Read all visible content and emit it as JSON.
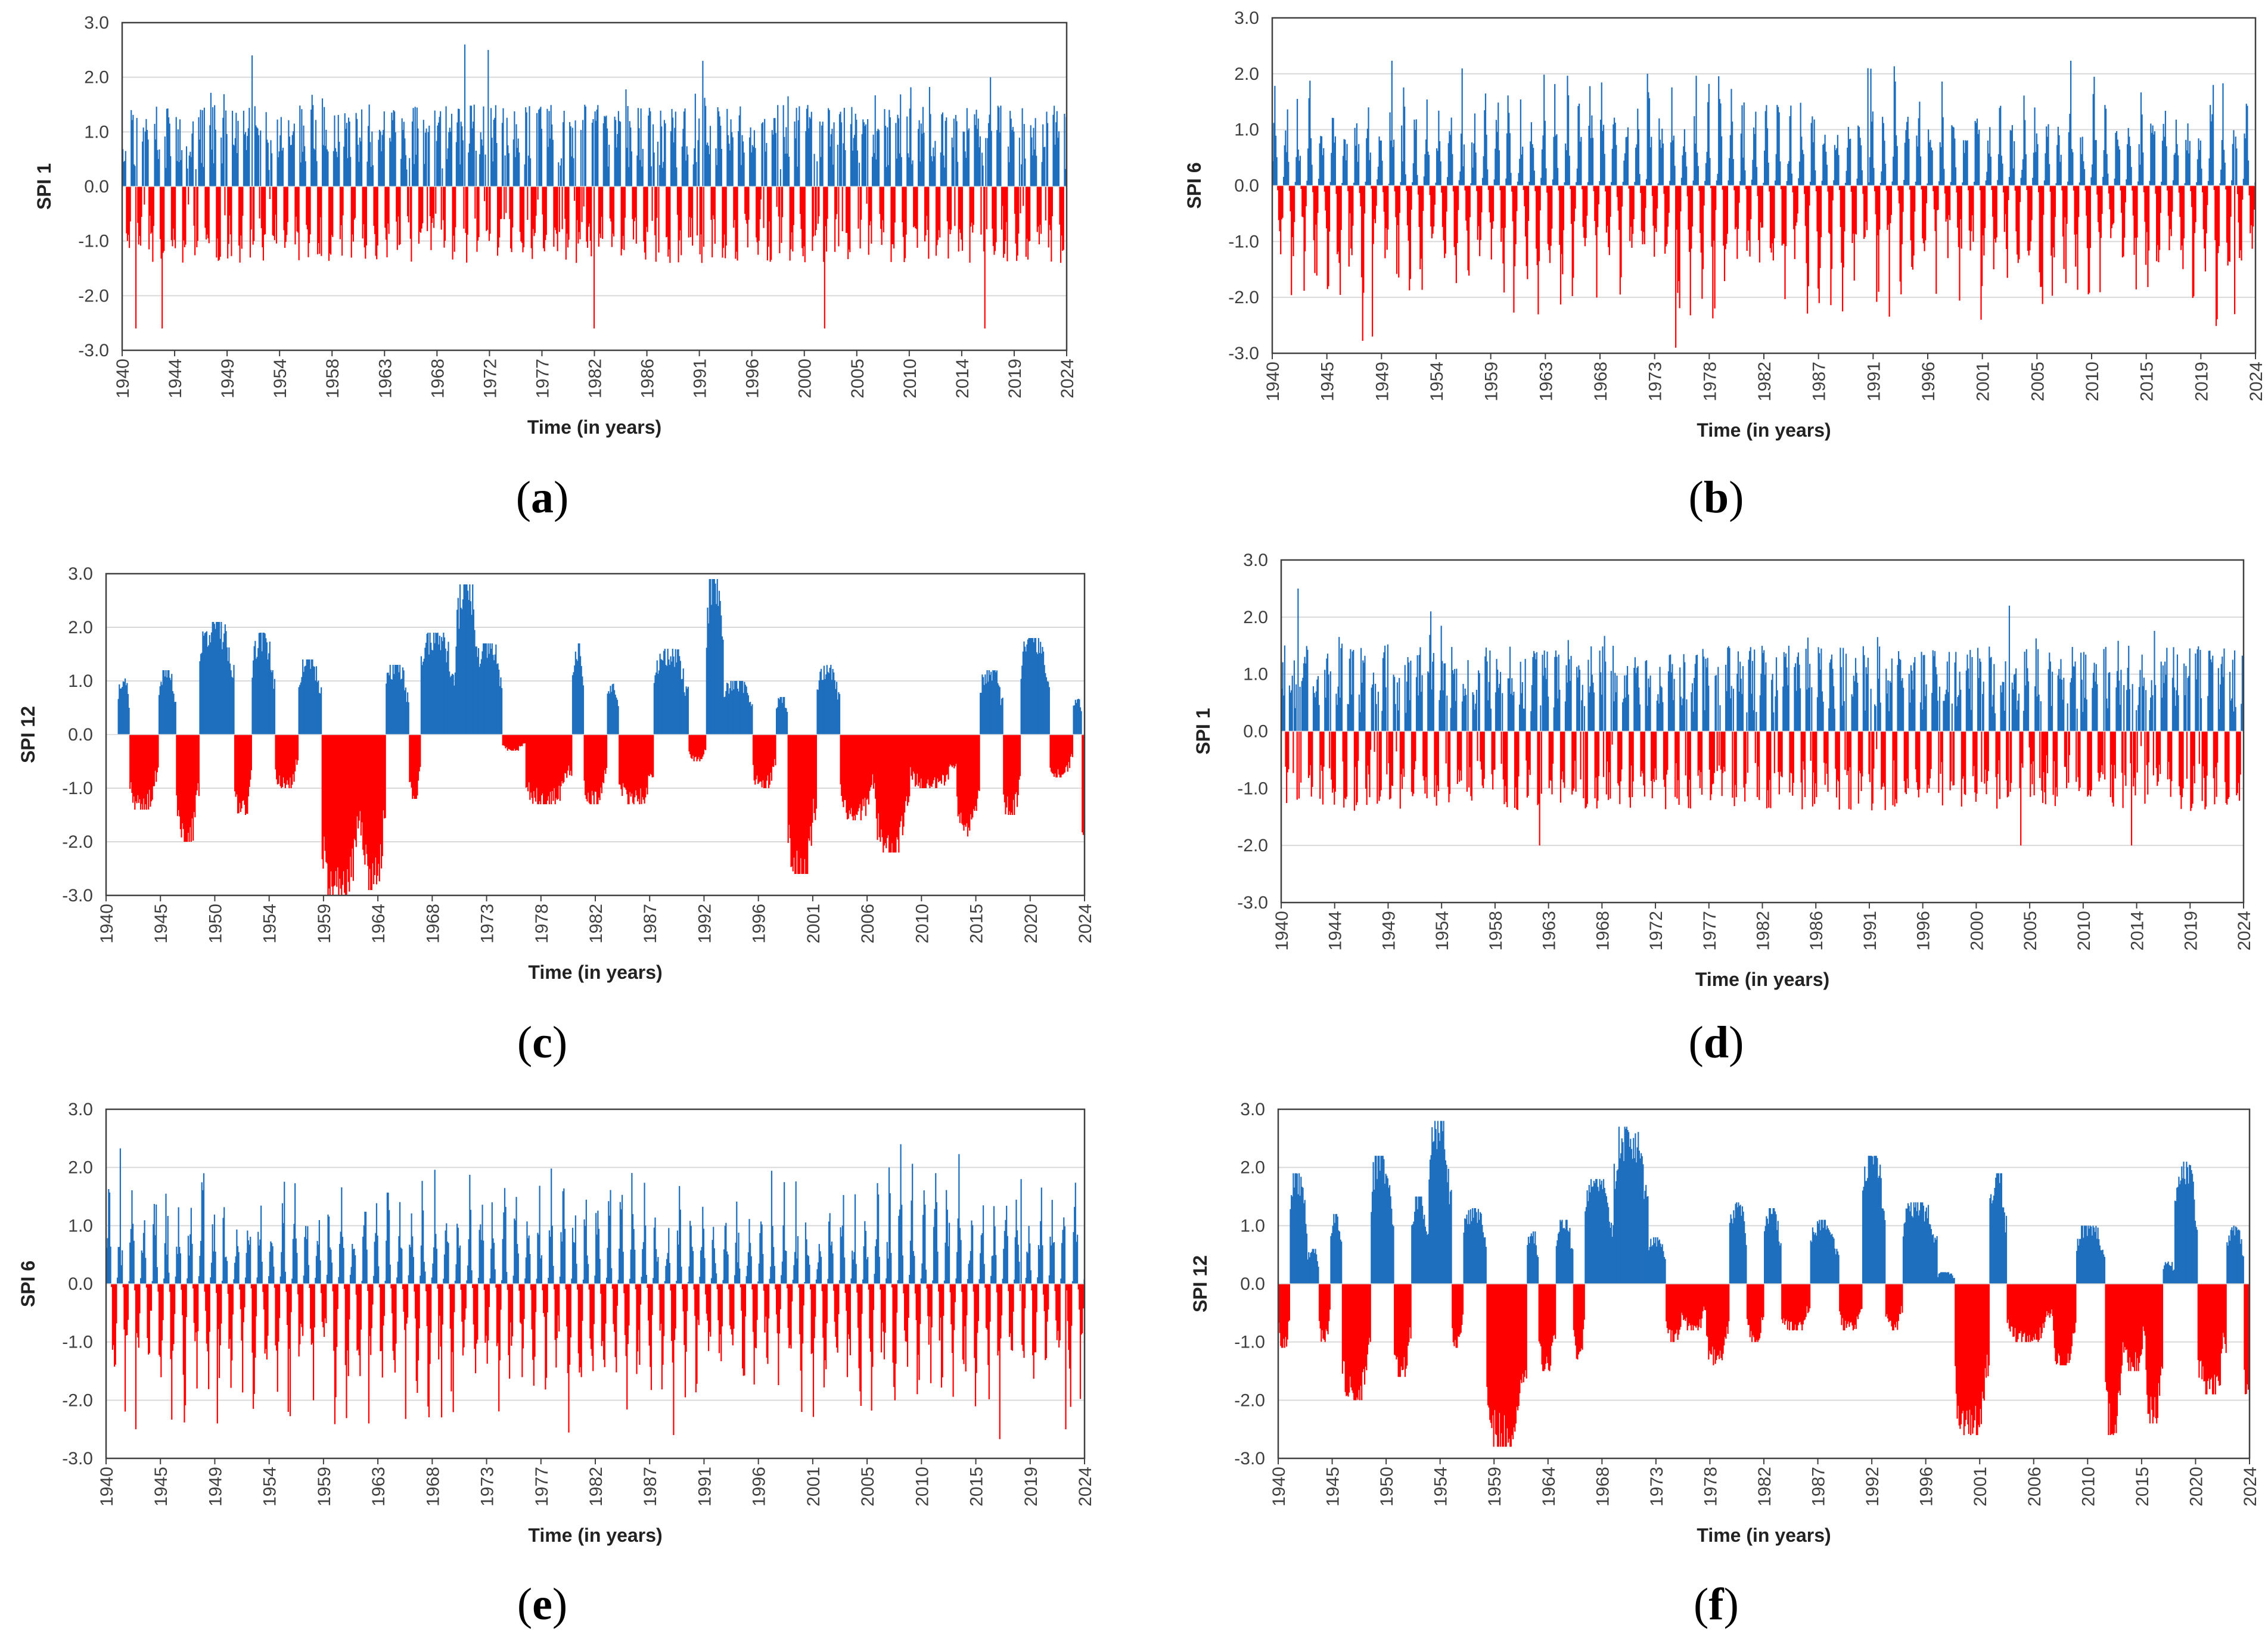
{
  "figure": {
    "positive_color": "#1f6fbf",
    "negative_color": "#ff0000",
    "grid_color": "#d9d9d9",
    "frame_color": "#404040"
  },
  "chart_data": [
    {
      "type": "bar",
      "panel": "a",
      "label": "a",
      "ylabel": "SPI 1",
      "xlabel": "Time (in years)",
      "ylim": [
        -3.0,
        3.0
      ],
      "yticks": [
        "-3.0",
        "-2.0",
        "-1.0",
        "0.0",
        "1.0",
        "2.0",
        "3.0"
      ],
      "xticks": [
        "1940",
        "1944",
        "1949",
        "1954",
        "1958",
        "1963",
        "1968",
        "1972",
        "1977",
        "1982",
        "1986",
        "1991",
        "1996",
        "2000",
        "2005",
        "2010",
        "2014",
        "2019",
        "2024"
      ],
      "grid": true,
      "scale": "SPI 1",
      "seed": 11,
      "series": {
        "name": "SPI 1",
        "start_year": 1940,
        "end_year": 2024,
        "step": "monthly",
        "values": []
      },
      "extremes": [
        {
          "year": 1941.2,
          "value": -2.6
        },
        {
          "year": 1943.5,
          "value": -2.6
        },
        {
          "year": 1951.5,
          "value": 2.4
        },
        {
          "year": 1970.4,
          "value": 2.6
        },
        {
          "year": 1972.5,
          "value": 2.5
        },
        {
          "year": 1981.9,
          "value": -2.6
        },
        {
          "year": 1991.6,
          "value": 2.3
        },
        {
          "year": 2002.4,
          "value": -2.6
        },
        {
          "year": 2016.7,
          "value": -2.6
        },
        {
          "year": 2017.2,
          "value": 2.0
        }
      ]
    },
    {
      "type": "bar",
      "panel": "b",
      "label": "b",
      "ylabel": "SPI 6",
      "xlabel": "Time (in years)",
      "ylim": [
        -3.0,
        3.0
      ],
      "yticks": [
        "-3.0",
        "-2.0",
        "-1.0",
        "0.0",
        "1.0",
        "2.0",
        "3.0"
      ],
      "xticks": [
        "1940",
        "1945",
        "1949",
        "1954",
        "1959",
        "1963",
        "1968",
        "1973",
        "1978",
        "1982",
        "1987",
        "1991",
        "1996",
        "2001",
        "2005",
        "2010",
        "2015",
        "2019",
        "2024"
      ],
      "grid": true,
      "scale": "SPI 6",
      "seed": 23,
      "series": {
        "name": "SPI 6",
        "start_year": 1940,
        "end_year": 2024,
        "step": "monthly",
        "values": []
      },
      "extremes": [
        {
          "year": 1948.5,
          "value": -2.7
        },
        {
          "year": 1972.0,
          "value": 2.0
        },
        {
          "year": 1974.4,
          "value": -2.9
        },
        {
          "year": 1990.8,
          "value": 2.1
        },
        {
          "year": 2000.5,
          "value": -2.4
        },
        {
          "year": 2020.3,
          "value": 1.8
        },
        {
          "year": 2022.2,
          "value": -2.3
        }
      ]
    },
    {
      "type": "bar",
      "panel": "c",
      "label": "c",
      "ylabel": "SPI 12",
      "xlabel": "Time (in years)",
      "ylim": [
        -3.0,
        3.0
      ],
      "yticks": [
        "-3.0",
        "-2.0",
        "-1.0",
        "0.0",
        "1.0",
        "2.0",
        "3.0"
      ],
      "xticks": [
        "1940",
        "1945",
        "1950",
        "1954",
        "1959",
        "1964",
        "1968",
        "1973",
        "1978",
        "1982",
        "1987",
        "1992",
        "1996",
        "2001",
        "2006",
        "2010",
        "2015",
        "2020",
        "2024"
      ],
      "grid": true,
      "scale": "SPI 12",
      "seed": 37,
      "series": {
        "name": "SPI 12",
        "start_year": 1940,
        "end_year": 2024,
        "step": "monthly",
        "values": []
      },
      "episodes": [
        {
          "start": 1941.0,
          "end": 1942.0,
          "peak": 1.1
        },
        {
          "start": 1942.0,
          "end": 1944.5,
          "peak": -1.4
        },
        {
          "start": 1944.5,
          "end": 1946.0,
          "peak": 1.2
        },
        {
          "start": 1946.0,
          "end": 1948.0,
          "peak": -2.0
        },
        {
          "start": 1948.0,
          "end": 1951.0,
          "peak": 2.1
        },
        {
          "start": 1951.0,
          "end": 1952.5,
          "peak": -1.5
        },
        {
          "start": 1952.5,
          "end": 1954.5,
          "peak": 1.9
        },
        {
          "start": 1954.5,
          "end": 1956.5,
          "peak": -1.0
        },
        {
          "start": 1956.5,
          "end": 1958.5,
          "peak": 1.4
        },
        {
          "start": 1958.5,
          "end": 1962.0,
          "peak": -3.0
        },
        {
          "start": 1962.0,
          "end": 1964.0,
          "peak": -2.9
        },
        {
          "start": 1964.0,
          "end": 1966.0,
          "peak": 1.3
        },
        {
          "start": 1966.0,
          "end": 1967.0,
          "peak": -1.2
        },
        {
          "start": 1967.0,
          "end": 1970.0,
          "peak": 1.9
        },
        {
          "start": 1970.0,
          "end": 1972.0,
          "peak": 2.8
        },
        {
          "start": 1972.0,
          "end": 1974.0,
          "peak": 1.7
        },
        {
          "start": 1974.0,
          "end": 1976.0,
          "peak": -0.3
        },
        {
          "start": 1976.0,
          "end": 1980.0,
          "peak": -1.3
        },
        {
          "start": 1980.0,
          "end": 1981.0,
          "peak": 1.7
        },
        {
          "start": 1981.0,
          "end": 1983.0,
          "peak": -1.3
        },
        {
          "start": 1983.0,
          "end": 1984.0,
          "peak": 1.0
        },
        {
          "start": 1984.0,
          "end": 1987.0,
          "peak": -1.3
        },
        {
          "start": 1987.0,
          "end": 1990.0,
          "peak": 1.6
        },
        {
          "start": 1990.0,
          "end": 1991.5,
          "peak": -0.5
        },
        {
          "start": 1991.5,
          "end": 1993.0,
          "peak": 2.9
        },
        {
          "start": 1993.0,
          "end": 1995.5,
          "peak": 1.0
        },
        {
          "start": 1995.5,
          "end": 1997.5,
          "peak": -1.0
        },
        {
          "start": 1997.5,
          "end": 1998.5,
          "peak": 0.7
        },
        {
          "start": 1998.5,
          "end": 2001.0,
          "peak": -2.6
        },
        {
          "start": 2001.0,
          "end": 2003.0,
          "peak": 1.3
        },
        {
          "start": 2003.0,
          "end": 2006.0,
          "peak": -1.6
        },
        {
          "start": 2006.0,
          "end": 2009.0,
          "peak": -2.2
        },
        {
          "start": 2009.0,
          "end": 2013.0,
          "peak": -1.0
        },
        {
          "start": 2013.0,
          "end": 2015.0,
          "peak": -1.9
        },
        {
          "start": 2015.0,
          "end": 2017.0,
          "peak": 1.2
        },
        {
          "start": 2017.0,
          "end": 2018.5,
          "peak": -1.5
        },
        {
          "start": 2018.5,
          "end": 2021.0,
          "peak": 1.8
        },
        {
          "start": 2021.0,
          "end": 2023.0,
          "peak": -0.8
        },
        {
          "start": 2023.0,
          "end": 2023.7,
          "peak": 0.7
        },
        {
          "start": 2023.7,
          "end": 2024.0,
          "peak": -2.0
        }
      ]
    },
    {
      "type": "bar",
      "panel": "d",
      "label": "d",
      "ylabel": "SPI 1",
      "xlabel": "Time (in years)",
      "ylim": [
        -3.0,
        3.0
      ],
      "yticks": [
        "-3.0",
        "-2.0",
        "-1.0",
        "0.0",
        "1.0",
        "2.0",
        "3.0"
      ],
      "xticks": [
        "1940",
        "1944",
        "1949",
        "1954",
        "1958",
        "1963",
        "1968",
        "1972",
        "1977",
        "1982",
        "1986",
        "1991",
        "1996",
        "2000",
        "2005",
        "2010",
        "2014",
        "2019",
        "2024"
      ],
      "grid": true,
      "scale": "SPI 1",
      "seed": 53,
      "series": {
        "name": "SPI 1",
        "start_year": 1940,
        "end_year": 2024,
        "step": "monthly",
        "values": []
      },
      "extremes": [
        {
          "year": 1941.4,
          "value": 2.5
        },
        {
          "year": 1953.0,
          "value": 2.1
        },
        {
          "year": 1962.5,
          "value": -2.0
        },
        {
          "year": 2003.5,
          "value": 2.2
        },
        {
          "year": 2004.5,
          "value": -2.0
        },
        {
          "year": 2014.2,
          "value": -2.0
        }
      ]
    },
    {
      "type": "bar",
      "panel": "e",
      "label": "e",
      "ylabel": "SPI 6",
      "xlabel": "Time (in years)",
      "ylim": [
        -3.0,
        3.0
      ],
      "yticks": [
        "-3.0",
        "-2.0",
        "-1.0",
        "0.0",
        "1.0",
        "2.0",
        "3.0"
      ],
      "xticks": [
        "1940",
        "1945",
        "1949",
        "1954",
        "1959",
        "1963",
        "1968",
        "1973",
        "1977",
        "1982",
        "1987",
        "1991",
        "1996",
        "2001",
        "2005",
        "2010",
        "2015",
        "2019",
        "2024"
      ],
      "grid": true,
      "scale": "SPI 6",
      "seed": 71,
      "series": {
        "name": "SPI 6",
        "start_year": 1940,
        "end_year": 2024,
        "step": "monthly",
        "values": []
      },
      "extremes": [
        {
          "year": 1942.5,
          "value": -2.5
        },
        {
          "year": 1948.3,
          "value": 1.9
        },
        {
          "year": 1949.5,
          "value": -2.4
        },
        {
          "year": 1962.5,
          "value": -2.4
        },
        {
          "year": 1988.7,
          "value": -2.6
        },
        {
          "year": 2018.5,
          "value": 1.8
        },
        {
          "year": 2022.3,
          "value": -2.5
        }
      ]
    },
    {
      "type": "bar",
      "panel": "f",
      "label": "f",
      "ylabel": "SPI 12",
      "xlabel": "Time (in years)",
      "ylim": [
        -3.0,
        3.0
      ],
      "yticks": [
        "-3.0",
        "-2.0",
        "-1.0",
        "0.0",
        "1.0",
        "2.0",
        "3.0"
      ],
      "xticks": [
        "1940",
        "1945",
        "1950",
        "1954",
        "1959",
        "1964",
        "1968",
        "1973",
        "1978",
        "1982",
        "1987",
        "1992",
        "1996",
        "2001",
        "2006",
        "2010",
        "2015",
        "2020",
        "2024"
      ],
      "grid": true,
      "scale": "SPI 12",
      "seed": 89,
      "series": {
        "name": "SPI 12",
        "start_year": 1940,
        "end_year": 2024,
        "step": "monthly",
        "values": []
      },
      "episodes": [
        {
          "start": 1940.0,
          "end": 1941.0,
          "peak": -1.1
        },
        {
          "start": 1941.0,
          "end": 1942.5,
          "peak": 1.9
        },
        {
          "start": 1942.5,
          "end": 1943.5,
          "peak": 0.6
        },
        {
          "start": 1943.5,
          "end": 1944.5,
          "peak": -1.0
        },
        {
          "start": 1944.5,
          "end": 1945.5,
          "peak": 1.2
        },
        {
          "start": 1945.5,
          "end": 1948.0,
          "peak": -2.0
        },
        {
          "start": 1948.0,
          "end": 1950.0,
          "peak": 2.2
        },
        {
          "start": 1950.0,
          "end": 1951.5,
          "peak": -1.6
        },
        {
          "start": 1951.5,
          "end": 1953.0,
          "peak": 1.5
        },
        {
          "start": 1953.0,
          "end": 1955.0,
          "peak": 2.8
        },
        {
          "start": 1955.0,
          "end": 1956.0,
          "peak": -1.1
        },
        {
          "start": 1956.0,
          "end": 1958.0,
          "peak": 1.3
        },
        {
          "start": 1958.0,
          "end": 1961.5,
          "peak": -2.8
        },
        {
          "start": 1961.5,
          "end": 1962.5,
          "peak": 0.9
        },
        {
          "start": 1962.5,
          "end": 1964.0,
          "peak": -1.5
        },
        {
          "start": 1964.0,
          "end": 1965.5,
          "peak": 1.1
        },
        {
          "start": 1965.5,
          "end": 1966.5,
          "peak": -1.3
        },
        {
          "start": 1966.5,
          "end": 1969.0,
          "peak": 1.8
        },
        {
          "start": 1969.0,
          "end": 1972.0,
          "peak": 2.7
        },
        {
          "start": 1972.0,
          "end": 1973.5,
          "peak": 0.8
        },
        {
          "start": 1973.5,
          "end": 1975.0,
          "peak": -1.0
        },
        {
          "start": 1975.0,
          "end": 1977.0,
          "peak": -0.8
        },
        {
          "start": 1977.0,
          "end": 1979.0,
          "peak": -1.4
        },
        {
          "start": 1979.0,
          "end": 1980.5,
          "peak": 1.4
        },
        {
          "start": 1980.5,
          "end": 1982.0,
          "peak": -1.0
        },
        {
          "start": 1982.0,
          "end": 1983.5,
          "peak": 1.3
        },
        {
          "start": 1983.5,
          "end": 1986.0,
          "peak": -0.8
        },
        {
          "start": 1986.0,
          "end": 1988.5,
          "peak": 1.1
        },
        {
          "start": 1988.5,
          "end": 1990.5,
          "peak": -0.8
        },
        {
          "start": 1990.5,
          "end": 1992.5,
          "peak": 2.2
        },
        {
          "start": 1992.5,
          "end": 1994.0,
          "peak": -0.8
        },
        {
          "start": 1994.0,
          "end": 1997.0,
          "peak": 1.4
        },
        {
          "start": 1997.0,
          "end": 1998.5,
          "peak": 0.2
        },
        {
          "start": 1998.5,
          "end": 2001.5,
          "peak": -2.6
        },
        {
          "start": 2001.5,
          "end": 2003.0,
          "peak": 1.9
        },
        {
          "start": 2003.0,
          "end": 2007.0,
          "peak": -1.0
        },
        {
          "start": 2007.0,
          "end": 2009.0,
          "peak": -1.4
        },
        {
          "start": 2009.0,
          "end": 2011.5,
          "peak": 1.0
        },
        {
          "start": 2011.5,
          "end": 2013.0,
          "peak": -2.6
        },
        {
          "start": 2013.0,
          "end": 2015.0,
          "peak": -1.5
        },
        {
          "start": 2015.0,
          "end": 2016.5,
          "peak": -2.4
        },
        {
          "start": 2016.5,
          "end": 2017.5,
          "peak": 0.4
        },
        {
          "start": 2017.5,
          "end": 2019.5,
          "peak": 2.1
        },
        {
          "start": 2019.5,
          "end": 2022.0,
          "peak": -1.9
        },
        {
          "start": 2022.0,
          "end": 2023.5,
          "peak": 1.0
        },
        {
          "start": 2023.5,
          "end": 2024.0,
          "peak": -2.0
        }
      ]
    }
  ]
}
